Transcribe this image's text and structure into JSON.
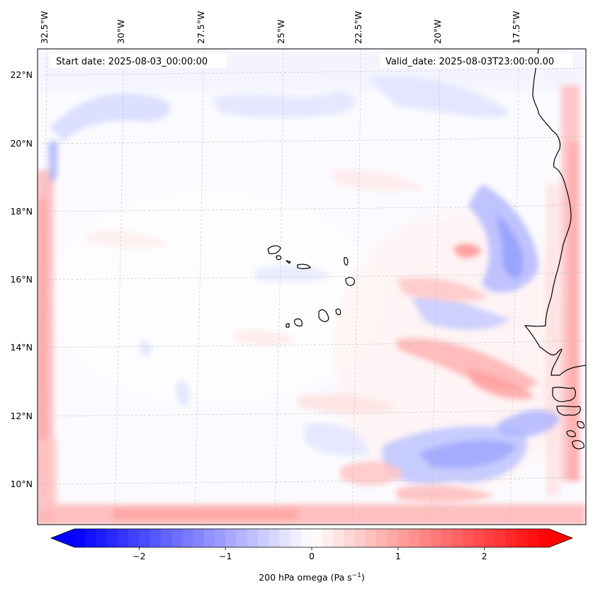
{
  "map": {
    "start_label": "Start date: 2025-08-03_00:00:00",
    "valid_label": "Valid_date: 2025-08-03T23:00:00.00",
    "lon_labels": [
      "32.5°W",
      "30°W",
      "27.5°W",
      "25°W",
      "22.5°W",
      "20°W",
      "17.5°W"
    ],
    "lat_labels": [
      "22°N",
      "20°N",
      "18°N",
      "16°N",
      "14°N",
      "12°N",
      "10°N"
    ],
    "extent": {
      "lon_min": -32.8,
      "lon_max": -15.8,
      "lat_min": 8.9,
      "lat_max": 22.8
    }
  },
  "colorbar": {
    "label": "200 hPa omega (Pa s",
    "label_exponent": "−1",
    "label_close": ")",
    "ticks": [
      "−2",
      "−1",
      "0",
      "1",
      "2"
    ],
    "tick_values": [
      -2,
      -1,
      0,
      1,
      2
    ],
    "range": [
      -2.75,
      2.75
    ],
    "min_color": "#0000ff",
    "mid_color": "#ffffff",
    "max_color": "#ff0000"
  },
  "colors": {
    "coast": "#000000",
    "grid": "#bbbbbb",
    "field_bg": "#fbfbff"
  }
}
